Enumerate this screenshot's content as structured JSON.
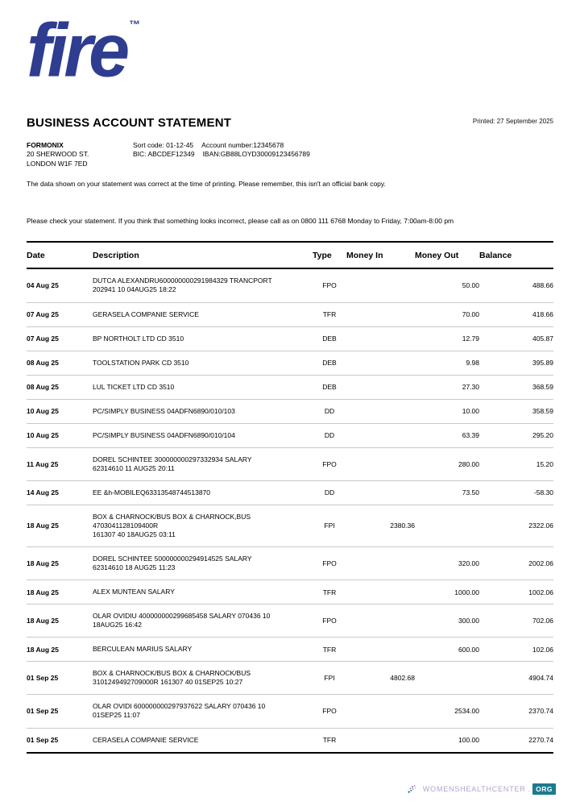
{
  "brand": {
    "logo_text": "fire",
    "trademark": "™",
    "logo_color": "#2e3d8f"
  },
  "header": {
    "title": "BUSINESS ACCOUNT STATEMENT",
    "printed": "Printed: 27 September 2025",
    "account_holder": {
      "name": "FORMONIX",
      "address_line1": "20 SHERWOOD ST.",
      "address_line2": "LONDON W1F 7ED"
    },
    "account_details": {
      "sort_code_label": "Sort code:",
      "sort_code": "01-12-45",
      "account_number_label": "Account number:",
      "account_number": "12345678",
      "bic_label": "BIC:",
      "bic": "ABCDEF12349",
      "iban_label": "IBAN:",
      "iban": "GB88LOYD30009123456789"
    },
    "disclaimer": "The data shown on your statement was correct at the time of printing. Please remember, this isn't an official bank copy.",
    "check_notice": "Please check your statement. If you think that something looks incorrect, please call as on 0800 111 6768 Monday to Friday, 7:00am-8:00 pm"
  },
  "table": {
    "columns": [
      "Date",
      "Description",
      "Type",
      "Money In",
      "Money Out",
      "Balance"
    ],
    "rows": [
      {
        "date": "04 Aug 25",
        "desc": [
          "DUTCA ALEXANDRU600000000291984329 TRANCPORT",
          "202941 10 04AUG25 18:22"
        ],
        "type": "FPO",
        "in": "",
        "out": "50.00",
        "balance": "488.66"
      },
      {
        "date": "07 Aug 25",
        "desc": [
          "GERASELA COMPANIE SERVICE"
        ],
        "type": "TFR",
        "in": "",
        "out": "70.00",
        "balance": "418.66"
      },
      {
        "date": "07 Aug 25",
        "desc": [
          "BP NORTHOLT LTD CD 3510"
        ],
        "type": "DEB",
        "in": "",
        "out": "12.79",
        "balance": "405.87"
      },
      {
        "date": "08 Aug 25",
        "desc": [
          "TOOLSTATION PARK CD 3510"
        ],
        "type": "DEB",
        "in": "",
        "out": "9.98",
        "balance": "395.89"
      },
      {
        "date": "08 Aug 25",
        "desc": [
          "LUL TICKET LTD CD 3510"
        ],
        "type": "DEB",
        "in": "",
        "out": "27.30",
        "balance": "368.59"
      },
      {
        "date": "10 Aug 25",
        "desc": [
          "PC/SIMPLY BUSINESS 04ADFN6890/010/103"
        ],
        "type": "DD",
        "in": "",
        "out": "10.00",
        "balance": "358.59"
      },
      {
        "date": "10 Aug 25",
        "desc": [
          "PC/SIMPLY BUSINESS 04ADFN6890/010/104"
        ],
        "type": "DD",
        "in": "",
        "out": "63.39",
        "balance": "295.20"
      },
      {
        "date": "11 Aug 25",
        "desc": [
          "DOREL SCHINTEE 300000000297332934 SALARY",
          "62314610 11 AUG25 20:11"
        ],
        "type": "FPO",
        "in": "",
        "out": "280.00",
        "balance": "15.20"
      },
      {
        "date": "14 Aug 25",
        "desc": [
          "EE &h-MOBILEQ63313548744513870"
        ],
        "type": "DD",
        "in": "",
        "out": "73.50",
        "balance": "-58.30"
      },
      {
        "date": "18 Aug 25",
        "desc": [
          "BOX & CHARNOCK/BUS BOX & CHARNOCK,BUS 4703041128109400R",
          "161307 40 18AUG25 03:11"
        ],
        "type": "FPI",
        "in": "2380.36",
        "out": "",
        "balance": "2322.06"
      },
      {
        "date": "18 Aug 25",
        "desc": [
          "DOREL SCHINTEE 500000000294914525 SALARY",
          "62314610 18 AUG25 11:23"
        ],
        "type": "FPO",
        "in": "",
        "out": "320.00",
        "balance": "2002.06"
      },
      {
        "date": "18 Aug 25",
        "desc": [
          "ALEX MUNTEAN SALARY"
        ],
        "type": "TFR",
        "in": "",
        "out": "1000.00",
        "balance": "1002.06"
      },
      {
        "date": "18 Aug 25",
        "desc": [
          "OLAR OVIDIU 400000000299685458 SALARY 070436 10",
          "18AUG25 16:42"
        ],
        "type": "FPO",
        "in": "",
        "out": "300.00",
        "balance": "702.06"
      },
      {
        "date": "18 Aug 25",
        "desc": [
          "BERCULEAN MARIUS SALARY"
        ],
        "type": "TFR",
        "in": "",
        "out": "600.00",
        "balance": "102.06"
      },
      {
        "date": "01 Sep 25",
        "desc": [
          "BOX & CHARNOCK/BUS BOX & CHARNOCK/BUS",
          "3101249492709000R 161307 40 01SEP25 10:27"
        ],
        "type": "FPI",
        "in": "4802.68",
        "out": "",
        "balance": "4904.74"
      },
      {
        "date": "01 Sep 25",
        "desc": [
          "OLAR OVIDI 600000000297937622 SALARY 070436 10",
          "01SEP25 11:07"
        ],
        "type": "FPO",
        "in": "",
        "out": "2534.00",
        "balance": "2370.74"
      },
      {
        "date": "01 Sep 25",
        "desc": [
          "CERASELA COMPANIE SERVICE"
        ],
        "type": "TFR",
        "in": "",
        "out": "100.00",
        "balance": "2270.74"
      }
    ]
  },
  "footer": {
    "site_name": "WOMENSHEALTHCENTER",
    "separator": ".",
    "site_tld": "ORG",
    "text_color": "#b5a2cd",
    "badge_color": "#1d7a8e"
  }
}
